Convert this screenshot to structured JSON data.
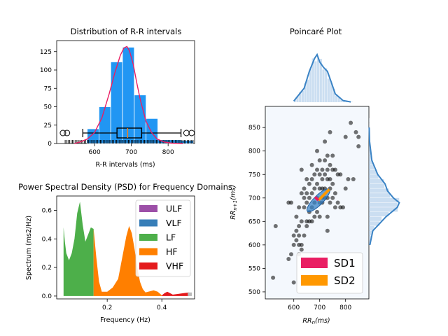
{
  "chart_data": [
    {
      "type": "bar",
      "title": "Distribution of R-R intervals",
      "xlabel": "R-R intervals (ms)",
      "ylabel": "",
      "xlim": [
        497,
        872
      ],
      "ylim": [
        0,
        140
      ],
      "xticks": [
        "600",
        "700",
        "800"
      ],
      "yticks": [
        "0",
        "25",
        "50",
        "75",
        "100",
        "125"
      ],
      "bar_color": "#2196f3",
      "density_color": "#e91e63",
      "bins": [
        {
          "start": 580,
          "end": 612,
          "value": 20
        },
        {
          "start": 612,
          "end": 644,
          "value": 50
        },
        {
          "start": 644,
          "end": 676,
          "value": 111
        },
        {
          "start": 676,
          "end": 708,
          "value": 131
        },
        {
          "start": 708,
          "end": 740,
          "value": 66
        },
        {
          "start": 740,
          "end": 772,
          "value": 34
        },
        {
          "start": 772,
          "end": 804,
          "value": 5
        },
        {
          "start": 804,
          "end": 836,
          "value": 5
        },
        {
          "start": 836,
          "end": 868,
          "value": 4
        }
      ],
      "density": [
        [
          545,
          0
        ],
        [
          560,
          2
        ],
        [
          580,
          6
        ],
        [
          600,
          15
        ],
        [
          620,
          35
        ],
        [
          640,
          68
        ],
        [
          655,
          96
        ],
        [
          670,
          120
        ],
        [
          680,
          130
        ],
        [
          688,
          132
        ],
        [
          695,
          126
        ],
        [
          705,
          108
        ],
        [
          715,
          82
        ],
        [
          725,
          58
        ],
        [
          740,
          30
        ],
        [
          755,
          15
        ],
        [
          770,
          6
        ],
        [
          790,
          2
        ],
        [
          810,
          0.5
        ],
        [
          840,
          0
        ]
      ],
      "boxplot": {
        "whisker_low": 568,
        "q1": 661,
        "median": 690,
        "q3": 728,
        "whisker_high": 835,
        "outliers": [
          514,
          525,
          850,
          864
        ]
      }
    },
    {
      "type": "area",
      "title": "Power Spectral Density (PSD) for Frequency Domains",
      "xlabel": "Frequency (Hz)",
      "ylabel": "Spectrum (ms2/Hz)",
      "xlim": [
        0,
        0.5
      ],
      "ylim": [
        0,
        0.7
      ],
      "xticks": [
        "0.2",
        "0.4"
      ],
      "yticks": [
        "0.0",
        "0.2",
        "0.4",
        "0.6"
      ],
      "legend_position": "top-right",
      "series": [
        {
          "name": "ULF",
          "color": "#9c4fa7",
          "points": []
        },
        {
          "name": "VLF",
          "color": "#377eb8",
          "points": []
        },
        {
          "name": "LF",
          "color": "#4daf4a",
          "points": [
            [
              0.04,
              0.48
            ],
            [
              0.045,
              0.38
            ],
            [
              0.05,
              0.3
            ],
            [
              0.06,
              0.25
            ],
            [
              0.07,
              0.3
            ],
            [
              0.08,
              0.4
            ],
            [
              0.09,
              0.58
            ],
            [
              0.1,
              0.66
            ],
            [
              0.11,
              0.5
            ],
            [
              0.12,
              0.38
            ],
            [
              0.13,
              0.43
            ],
            [
              0.14,
              0.48
            ],
            [
              0.15,
              0.47
            ]
          ]
        },
        {
          "name": "HF",
          "color": "#ff7f00",
          "points": [
            [
              0.15,
              0.47
            ],
            [
              0.16,
              0.27
            ],
            [
              0.17,
              0.1
            ],
            [
              0.18,
              0.03
            ],
            [
              0.2,
              0.03
            ],
            [
              0.22,
              0.06
            ],
            [
              0.24,
              0.12
            ],
            [
              0.25,
              0.22
            ],
            [
              0.26,
              0.32
            ],
            [
              0.27,
              0.42
            ],
            [
              0.28,
              0.49
            ],
            [
              0.29,
              0.44
            ],
            [
              0.3,
              0.33
            ],
            [
              0.31,
              0.2
            ],
            [
              0.32,
              0.1
            ],
            [
              0.33,
              0.05
            ],
            [
              0.34,
              0.025
            ],
            [
              0.36,
              0.035
            ],
            [
              0.37,
              0.04
            ],
            [
              0.385,
              0.03
            ],
            [
              0.4,
              0.005
            ]
          ]
        },
        {
          "name": "VHF",
          "color": "#e41a1c",
          "points": [
            [
              0.4,
              0.005
            ],
            [
              0.41,
              0.02
            ],
            [
              0.42,
              0.03
            ],
            [
              0.43,
              0.02
            ],
            [
              0.44,
              0.01
            ],
            [
              0.46,
              0.015
            ],
            [
              0.48,
              0.02
            ],
            [
              0.5,
              0.025
            ]
          ]
        }
      ]
    },
    {
      "type": "scatter",
      "title": "Poincaré Plot",
      "xlabel": "RR_n(ms)",
      "ylabel": "RR_{n+1}(ms)",
      "xlim": [
        490,
        890
      ],
      "ylim": [
        485,
        895
      ],
      "xticks": [
        "600",
        "700",
        "800"
      ],
      "yticks": [
        "500",
        "550",
        "600",
        "650",
        "700",
        "750",
        "800",
        "850"
      ],
      "legend_position": "bottom-right",
      "legend": [
        {
          "name": "SD1",
          "color": "#e91e63"
        },
        {
          "name": "SD2",
          "color": "#ff9800"
        }
      ],
      "points": [
        [
          520,
          530
        ],
        [
          530,
          640
        ],
        [
          580,
          690
        ],
        [
          590,
          690
        ],
        [
          580,
          570
        ],
        [
          590,
          580
        ],
        [
          600,
          520
        ],
        [
          600,
          600
        ],
        [
          600,
          620
        ],
        [
          610,
          610
        ],
        [
          610,
          630
        ],
        [
          610,
          660
        ],
        [
          620,
          580
        ],
        [
          620,
          600
        ],
        [
          620,
          620
        ],
        [
          620,
          640
        ],
        [
          620,
          680
        ],
        [
          630,
          590
        ],
        [
          630,
          600
        ],
        [
          630,
          650
        ],
        [
          630,
          710
        ],
        [
          630,
          760
        ],
        [
          640,
          620
        ],
        [
          640,
          680
        ],
        [
          640,
          700
        ],
        [
          640,
          720
        ],
        [
          650,
          640
        ],
        [
          650,
          650
        ],
        [
          650,
          690
        ],
        [
          650,
          710
        ],
        [
          650,
          740
        ],
        [
          660,
          650
        ],
        [
          660,
          670
        ],
        [
          660,
          700
        ],
        [
          660,
          730
        ],
        [
          670,
          650
        ],
        [
          670,
          680
        ],
        [
          670,
          710
        ],
        [
          670,
          740
        ],
        [
          670,
          770
        ],
        [
          680,
          660
        ],
        [
          680,
          690
        ],
        [
          680,
          720
        ],
        [
          680,
          750
        ],
        [
          690,
          670
        ],
        [
          690,
          700
        ],
        [
          690,
          730
        ],
        [
          690,
          760
        ],
        [
          690,
          800
        ],
        [
          700,
          660
        ],
        [
          700,
          690
        ],
        [
          700,
          720
        ],
        [
          700,
          750
        ],
        [
          700,
          780
        ],
        [
          710,
          690
        ],
        [
          710,
          720
        ],
        [
          710,
          740
        ],
        [
          710,
          760
        ],
        [
          710,
          700
        ],
        [
          720,
          700
        ],
        [
          720,
          720
        ],
        [
          720,
          750
        ],
        [
          720,
          780
        ],
        [
          720,
          820
        ],
        [
          730,
          630
        ],
        [
          730,
          660
        ],
        [
          730,
          700
        ],
        [
          730,
          740
        ],
        [
          730,
          760
        ],
        [
          730,
          790
        ],
        [
          740,
          690
        ],
        [
          740,
          720
        ],
        [
          740,
          740
        ],
        [
          740,
          770
        ],
        [
          740,
          840
        ],
        [
          750,
          700
        ],
        [
          750,
          730
        ],
        [
          750,
          760
        ],
        [
          750,
          790
        ],
        [
          760,
          680
        ],
        [
          760,
          710
        ],
        [
          760,
          760
        ],
        [
          770,
          690
        ],
        [
          770,
          750
        ],
        [
          780,
          680
        ],
        [
          780,
          750
        ],
        [
          790,
          680
        ],
        [
          800,
          830
        ],
        [
          800,
          720
        ],
        [
          810,
          740
        ],
        [
          820,
          860
        ],
        [
          830,
          740
        ],
        [
          840,
          840
        ],
        [
          850,
          810
        ],
        [
          850,
          830
        ]
      ],
      "ellipse": {
        "center": [
          695,
          695
        ],
        "sd1": 18,
        "sd2": 60,
        "angle_deg": 45
      },
      "hist_color": "#a8c8e8",
      "kde_color": "#3a83c5",
      "x_marginal": [
        [
          600,
          0.02
        ],
        [
          640,
          0.25
        ],
        [
          660,
          0.55
        ],
        [
          680,
          0.78
        ],
        [
          690,
          0.85
        ],
        [
          700,
          0.72
        ],
        [
          715,
          0.62
        ],
        [
          730,
          0.55
        ],
        [
          745,
          0.35
        ],
        [
          760,
          0.15
        ],
        [
          790,
          0.03
        ],
        [
          820,
          0.005
        ]
      ],
      "y_marginal": [
        [
          600,
          0.02
        ],
        [
          630,
          0.08
        ],
        [
          660,
          0.35
        ],
        [
          680,
          0.58
        ],
        [
          690,
          0.62
        ],
        [
          700,
          0.5
        ],
        [
          715,
          0.38
        ],
        [
          730,
          0.33
        ],
        [
          750,
          0.18
        ],
        [
          780,
          0.06
        ],
        [
          820,
          0.015
        ],
        [
          850,
          0.005
        ]
      ]
    }
  ]
}
